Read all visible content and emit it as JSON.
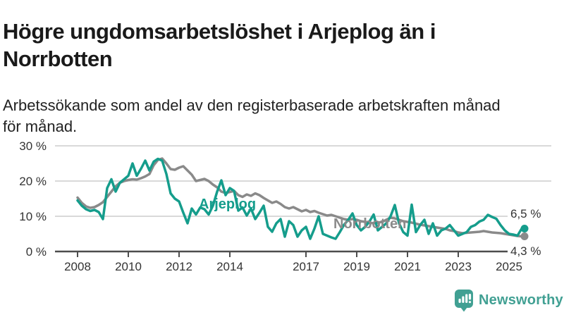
{
  "title_lines": [
    "Högre ungdomsarbetslöshet i Arjeplog än i",
    "Norrbotten"
  ],
  "subtitle_lines": [
    "Arbetssökande som andel av den registerbaserade arbetskraften månad",
    "för månad."
  ],
  "branding": {
    "logo_text": "Newsworthy",
    "logo_icon": "bar-chart-speech-bubble-icon",
    "logo_color": "#41a093"
  },
  "colors": {
    "arjeplog": "#159d8c",
    "norrbotten": "#8a8a8a",
    "axis": "#4d4d4d",
    "grid": "#d9d9d9",
    "tick_text": "#333333",
    "background": "#ffffff"
  },
  "chart_data": {
    "type": "line",
    "unit": "%",
    "x_start": 2008.0,
    "x_step_years": 0.1666667,
    "xlim": [
      2007.1,
      2026.7
    ],
    "ylim": [
      0,
      30
    ],
    "grid": true,
    "x_tick_years": [
      2008,
      2010,
      2012,
      2014,
      2017,
      2019,
      2021,
      2023,
      2025
    ],
    "x_tick_labels": [
      "2008",
      "2010",
      "2012",
      "2014",
      "2017",
      "2019",
      "2021",
      "2023",
      "2025"
    ],
    "y_ticks": [
      {
        "value": 0,
        "label": "0 %"
      },
      {
        "value": 10,
        "label": "10 %"
      },
      {
        "value": 20,
        "label": "20 %"
      },
      {
        "value": 30,
        "label": "30 %"
      }
    ],
    "series": [
      {
        "name": "Arjeplog",
        "color": "#159d8c",
        "end_label": "6,5 %",
        "end_value": 6.5,
        "values": [
          14.5,
          13.0,
          12.0,
          11.5,
          11.8,
          11.2,
          9.2,
          18.0,
          20.5,
          17.0,
          19.5,
          20.5,
          21.5,
          25.0,
          21.5,
          23.5,
          25.8,
          23.0,
          25.5,
          26.3,
          25.8,
          22.0,
          16.5,
          15.0,
          14.2,
          11.0,
          8.0,
          12.2,
          10.5,
          12.5,
          12.0,
          10.5,
          13.0,
          17.0,
          20.2,
          16.0,
          18.0,
          17.2,
          11.6,
          12.5,
          10.2,
          12.2,
          9.2,
          11.0,
          13.0,
          7.0,
          5.6,
          8.0,
          9.2,
          4.2,
          8.6,
          7.5,
          4.2,
          6.0,
          7.0,
          3.6,
          6.5,
          10.0,
          5.0,
          4.5,
          4.0,
          3.6,
          5.5,
          7.6,
          9.0,
          10.8,
          7.5,
          6.0,
          7.0,
          8.5,
          10.5,
          6.0,
          7.0,
          8.0,
          10.0,
          13.2,
          8.0,
          5.5,
          4.5,
          13.3,
          5.5,
          7.5,
          9.0,
          5.0,
          8.0,
          4.5,
          6.0,
          6.5,
          7.5,
          6.0,
          4.5,
          5.0,
          5.5,
          7.0,
          7.5,
          8.5,
          9.0,
          10.4,
          9.8,
          9.3,
          7.5,
          6.0,
          5.0,
          4.8,
          4.5,
          6.5
        ]
      },
      {
        "name": "Norrbotten",
        "color": "#8a8a8a",
        "end_label": "4,3 %",
        "end_value": 4.3,
        "values": [
          15.3,
          13.8,
          12.8,
          12.4,
          12.6,
          13.2,
          14.0,
          15.5,
          17.0,
          18.5,
          19.5,
          20.0,
          20.3,
          20.5,
          20.4,
          20.8,
          21.3,
          22.0,
          24.5,
          26.0,
          26.4,
          25.0,
          23.4,
          23.2,
          23.8,
          24.2,
          23.0,
          21.8,
          20.0,
          20.3,
          20.6,
          20.0,
          19.0,
          18.2,
          17.0,
          16.6,
          16.9,
          17.2,
          16.0,
          15.5,
          16.2,
          15.8,
          16.5,
          16.0,
          15.2,
          14.5,
          13.8,
          14.2,
          13.5,
          12.6,
          12.2,
          12.6,
          12.0,
          11.4,
          11.8,
          11.2,
          11.5,
          11.0,
          10.6,
          10.2,
          10.4,
          10.0,
          9.6,
          9.2,
          9.0,
          9.2,
          9.0,
          8.6,
          8.4,
          8.2,
          8.0,
          8.2,
          8.4,
          9.0,
          9.6,
          9.4,
          9.0,
          8.6,
          8.4,
          8.2,
          7.9,
          7.6,
          7.4,
          7.2,
          7.0,
          6.8,
          6.6,
          6.4,
          6.0,
          5.8,
          5.4,
          5.2,
          5.3,
          5.4,
          5.5,
          5.6,
          5.8,
          5.6,
          5.4,
          5.3,
          5.2,
          5.0,
          4.8,
          4.6,
          4.4,
          4.3
        ]
      }
    ]
  }
}
